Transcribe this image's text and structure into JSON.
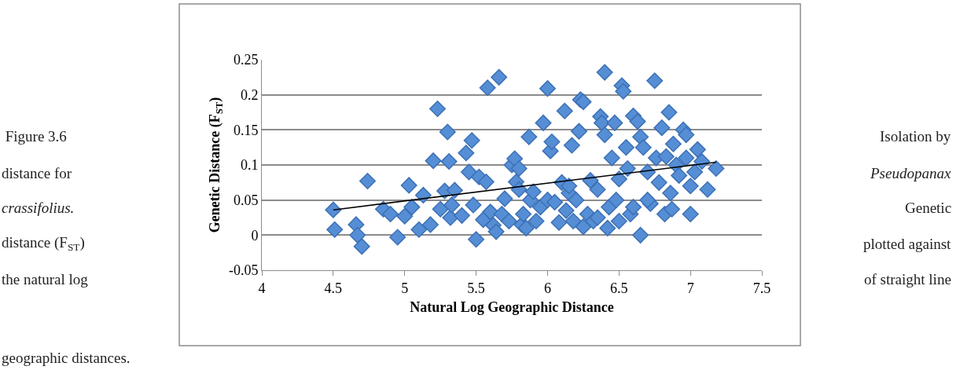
{
  "chart_data": {
    "type": "scatter",
    "xlabel": "Natural Log Geographic Distance",
    "ylabel": "Genetic Distance (F$_{ST}$)",
    "annotations": [
      " Figure 3.6",
      "distance for",
      "crassifolius.",
      "distance (F$_{ST}$)",
      "the natural log",
      "geographic distances.",
      "Isolation by",
      "Pseudopanax",
      "Genetic",
      "plotted against",
      "of straight line"
    ],
    "xlim": [
      4,
      7.5
    ],
    "xticks": [
      4,
      4.5,
      5,
      5.5,
      6,
      6.5,
      7,
      7.5
    ],
    "ylim": [
      -0.05,
      0.25
    ],
    "yticks": [
      -0.05,
      0,
      0.05,
      0.1,
      0.15,
      0.2,
      0.25
    ],
    "grid": "y",
    "series": [
      {
        "marker": "diamond",
        "color": "#558ed5",
        "x": [
          4.5,
          4.51,
          4.66,
          4.67,
          4.7,
          4.74,
          4.85,
          4.9,
          4.95,
          5.0,
          5.03,
          5.05,
          5.1,
          5.13,
          5.18,
          5.2,
          5.23,
          5.25,
          5.28,
          5.3,
          5.31,
          5.32,
          5.33,
          5.35,
          5.4,
          5.43,
          5.45,
          5.47,
          5.48,
          5.5,
          5.52,
          5.55,
          5.57,
          5.58,
          5.6,
          5.62,
          5.64,
          5.66,
          5.68,
          5.7,
          5.73,
          5.75,
          5.77,
          5.78,
          5.8,
          5.8,
          5.82,
          5.83,
          5.85,
          5.87,
          5.88,
          5.9,
          5.92,
          5.95,
          5.97,
          6.0,
          6.0,
          6.02,
          6.03,
          6.05,
          6.08,
          6.1,
          6.12,
          6.13,
          6.15,
          6.17,
          6.18,
          6.2,
          6.22,
          6.23,
          6.25,
          6.25,
          6.28,
          6.3,
          6.32,
          6.35,
          6.37,
          6.38,
          6.4,
          6.4,
          6.42,
          6.43,
          6.45,
          6.47,
          6.48,
          6.5,
          6.52,
          6.53,
          6.55,
          6.56,
          6.58,
          6.6,
          6.63,
          6.65,
          6.65,
          6.67,
          6.7,
          6.72,
          6.75,
          6.76,
          6.78,
          6.8,
          6.82,
          6.83,
          6.85,
          6.86,
          6.87,
          6.88,
          6.9,
          6.92,
          6.95,
          6.97,
          6.97,
          7.0,
          7.0,
          7.03,
          7.05,
          7.08,
          7.12,
          7.18,
          6.7,
          6.6,
          6.5,
          6.35,
          6.15
        ],
        "values": [
          0.036,
          0.008,
          0.015,
          0.0,
          -0.016,
          0.077,
          0.037,
          0.03,
          -0.003,
          0.027,
          0.071,
          0.04,
          0.008,
          0.057,
          0.015,
          0.106,
          0.18,
          0.037,
          0.063,
          0.147,
          0.105,
          0.025,
          0.043,
          0.064,
          0.028,
          0.117,
          0.09,
          0.135,
          0.043,
          -0.006,
          0.083,
          0.022,
          0.076,
          0.21,
          0.033,
          0.014,
          0.005,
          0.225,
          0.03,
          0.052,
          0.02,
          0.1,
          0.109,
          0.076,
          0.095,
          0.065,
          0.015,
          0.03,
          0.01,
          0.14,
          0.05,
          0.062,
          0.02,
          0.04,
          0.16,
          0.209,
          0.05,
          0.12,
          0.133,
          0.047,
          0.018,
          0.075,
          0.177,
          0.035,
          0.06,
          0.128,
          0.02,
          0.05,
          0.148,
          0.193,
          0.19,
          0.012,
          0.03,
          0.078,
          0.02,
          0.065,
          0.169,
          0.16,
          0.143,
          0.232,
          0.01,
          0.04,
          0.11,
          0.16,
          0.05,
          0.08,
          0.213,
          0.205,
          0.125,
          0.095,
          0.03,
          0.17,
          0.162,
          0.14,
          0.0,
          0.125,
          0.09,
          0.045,
          0.22,
          0.11,
          0.075,
          0.153,
          0.03,
          0.112,
          0.175,
          0.06,
          0.037,
          0.13,
          0.1,
          0.085,
          0.15,
          0.143,
          0.11,
          0.07,
          0.03,
          0.09,
          0.122,
          0.105,
          0.065,
          0.095,
          0.05,
          0.04,
          0.02,
          0.025,
          0.07
        ]
      },
      {
        "type": "line",
        "marker": "none",
        "color": "#000000",
        "x": [
          4.5,
          7.18
        ],
        "values": [
          0.036,
          0.104
        ]
      }
    ]
  }
}
